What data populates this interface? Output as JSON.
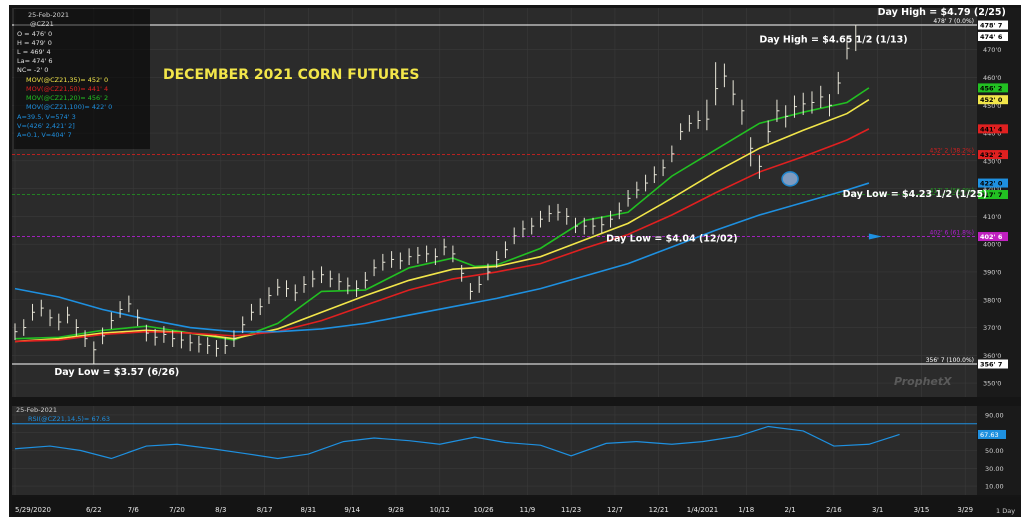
{
  "chart_data": {
    "type": "line",
    "title": "DECEMBER 2021 CORN FUTURES",
    "price_panel": {
      "date_label": "25-Feb-2021",
      "symbol": "@CZ21",
      "ohlc": [
        "O = 476' 0",
        "H = 479' 0",
        "L = 469' 4",
        "La= 474' 6",
        "NC= -2' 0"
      ],
      "moving_averages": [
        {
          "name": "MOV(@CZ21,35)",
          "label": "MOV(@CZ21,35)= 452' 0",
          "color": "#f2e64a",
          "value": 452.0
        },
        {
          "name": "MOV(@CZ21,50)",
          "label": "MOV(@CZ21,50)= 441' 4",
          "color": "#e02020",
          "value": 441.5
        },
        {
          "name": "MOV(@CZ21,20)",
          "label": "MOV(@CZ21,20)= 456' 2",
          "color": "#22c022",
          "value": 456.25
        },
        {
          "name": "MOV(@CZ21,100)",
          "label": "MOV(@CZ21,100)= 422' 0",
          "color": "#1e90e0",
          "value": 422.0
        }
      ],
      "extra_lines": [
        "A=39.5, V=574' 3",
        "V=(426' 2,421' 2]",
        "A=0.1, V=404' 7"
      ],
      "ylim": [
        345,
        485
      ],
      "y_ticks": [
        350,
        360,
        370,
        380,
        390,
        400,
        410,
        420,
        430,
        440,
        450,
        460,
        470
      ],
      "y_tick_labels": [
        "350'0",
        "360'0",
        "370'0",
        "380'0",
        "390'0",
        "400'0",
        "410'0",
        "420'0",
        "430'0",
        "440'0",
        "450'0",
        "460'0",
        "470'0"
      ],
      "price_flags": [
        {
          "label": "478' 7",
          "value": 478.875,
          "bg": "#ffffff",
          "fg": "#000000"
        },
        {
          "label": "474' 6",
          "value": 474.75,
          "bg": "#ffffff",
          "fg": "#000000"
        },
        {
          "label": "456' 2",
          "value": 456.25,
          "bg": "#22c022",
          "fg": "#000000"
        },
        {
          "label": "452' 0",
          "value": 452.0,
          "bg": "#f2e64a",
          "fg": "#000000"
        },
        {
          "label": "441' 4",
          "value": 441.5,
          "bg": "#e02020",
          "fg": "#000000"
        },
        {
          "label": "432' 2",
          "value": 432.25,
          "bg": "#e02020",
          "fg": "#000000"
        },
        {
          "label": "422' 0",
          "value": 422.0,
          "bg": "#1e90e0",
          "fg": "#000000"
        },
        {
          "label": "417' 7",
          "value": 417.875,
          "bg": "#22c022",
          "fg": "#000000"
        },
        {
          "label": "402' 6",
          "value": 402.75,
          "bg": "#c020c0",
          "fg": "#ffffff"
        },
        {
          "label": "356' 7",
          "value": 356.875,
          "bg": "#ffffff",
          "fg": "#000000"
        }
      ],
      "fib_levels": [
        {
          "label": "478' 7 (0.0%)",
          "value": 478.875,
          "color": "#ffffff",
          "dash": false
        },
        {
          "label": "432' 2 (38.2%)",
          "value": 432.25,
          "color": "#d02020",
          "dash": true
        },
        {
          "label": "417' 7 (50.0%)",
          "value": 417.875,
          "color": "#22a022",
          "dash": true
        },
        {
          "label": "402' 6 (61.8%)",
          "value": 402.75,
          "color": "#b020d0",
          "dash": true
        },
        {
          "label": "356' 7 (100.0%)",
          "value": 356.875,
          "color": "#ffffff",
          "dash": false
        }
      ],
      "annotations": [
        {
          "text": "Day High = $4.79 (2/25)",
          "x": 197,
          "y": 482.5
        },
        {
          "text": "Day High = $4.65 1/2 (1/13)",
          "x": 170,
          "y": 472.5
        },
        {
          "text": "Day Low = $4.23 1/2 (1/25)",
          "x": 189,
          "y": 417
        },
        {
          "text": "Day Low = $4.04 (12/02)",
          "x": 135,
          "y": 401
        },
        {
          "text": "Day Low = $3.57 (6/26)",
          "x": 9,
          "y": 353
        }
      ],
      "circle_marker": {
        "x": 177,
        "y": 423.5
      },
      "watermark": "ProphetX"
    },
    "rsi_panel": {
      "date_label": "25-Feb-2021",
      "label": "RSI(@CZ21,14,5)= 67.63",
      "value_flag": "67.63",
      "ylim": [
        0,
        100
      ],
      "y_ticks": [
        10,
        30,
        50,
        70,
        90
      ],
      "y_tick_labels": [
        "10.00",
        "30.00",
        "50.00",
        "70.00",
        "90.00"
      ],
      "overbought": 80,
      "x": [
        0,
        8,
        15,
        22,
        30,
        37,
        45,
        52,
        60,
        67,
        75,
        82,
        90,
        97,
        105,
        112,
        120,
        127,
        135,
        142,
        150,
        157,
        165,
        172,
        180,
        187,
        195,
        202
      ],
      "values": [
        52,
        55,
        50,
        41,
        55,
        57,
        52,
        47,
        41,
        46,
        60,
        64,
        61,
        57,
        65,
        59,
        56,
        44,
        58,
        60,
        57,
        60,
        66,
        77,
        72,
        55,
        57,
        68
      ]
    },
    "x_axis": {
      "labels": [
        "5/29/2020",
        "6/22",
        "7/6",
        "7/20",
        "8/3",
        "8/17",
        "8/31",
        "9/14",
        "9/28",
        "10/12",
        "10/26",
        "11/9",
        "11/23",
        "12/7",
        "12/21",
        "1/4/2021",
        "1/18",
        "2/1",
        "2/16",
        "3/1",
        "3/15",
        "3/29"
      ],
      "positions": [
        0,
        18,
        27,
        37,
        47,
        57,
        67,
        77,
        87,
        97,
        107,
        117,
        127,
        137,
        147,
        157,
        167,
        177,
        187,
        197,
        207,
        217
      ],
      "period": "1 Day"
    },
    "series": [
      {
        "name": "Daily bars",
        "x": [
          0,
          2,
          4,
          6,
          8,
          10,
          12,
          14,
          16,
          18,
          20,
          22,
          24,
          26,
          28,
          30,
          32,
          34,
          36,
          38,
          40,
          42,
          44,
          46,
          48,
          50,
          52,
          54,
          56,
          58,
          60,
          62,
          64,
          66,
          68,
          70,
          72,
          74,
          76,
          78,
          80,
          82,
          84,
          86,
          88,
          90,
          92,
          94,
          96,
          98,
          100,
          102,
          104,
          106,
          108,
          110,
          112,
          114,
          116,
          118,
          120,
          122,
          124,
          126,
          128,
          130,
          132,
          134,
          136,
          138,
          140,
          142,
          144,
          146,
          148,
          150,
          152,
          154,
          156,
          158,
          160,
          162,
          164,
          166,
          168,
          170,
          172,
          174,
          176,
          178,
          180,
          182,
          184,
          186,
          188,
          190,
          192
        ],
        "close": [
          368.5,
          370.0,
          375.5,
          377.0,
          373.5,
          372.0,
          374.5,
          370.0,
          366.0,
          362.0,
          367.0,
          372.5,
          376.5,
          378.5,
          373.5,
          368.0,
          366.5,
          367.5,
          366.0,
          365.5,
          364.5,
          364.0,
          363.5,
          362.5,
          363.5,
          366.0,
          371.0,
          375.5,
          377.5,
          381.5,
          384.5,
          384.0,
          382.5,
          385.5,
          387.5,
          389.0,
          387.5,
          386.5,
          385.0,
          384.0,
          387.0,
          391.5,
          393.5,
          394.5,
          394.0,
          395.5,
          396.0,
          396.5,
          395.5,
          399.0,
          396.5,
          389.5,
          383.0,
          385.5,
          390.0,
          394.5,
          398.0,
          403.0,
          405.5,
          406.5,
          409.0,
          411.0,
          411.5,
          410.0,
          406.5,
          406.5,
          406.5,
          407.0,
          409.0,
          412.0,
          416.5,
          419.5,
          422.0,
          425.0,
          427.5,
          432.5,
          440.5,
          443.5,
          444.5,
          445.0,
          456.0,
          460.5,
          454.0,
          448.0,
          434.5,
          428.0,
          440.5,
          448.0,
          446.0,
          449.5,
          450.5,
          451.0,
          453.0,
          450.0,
          458.0,
          470.5,
          474.75
        ],
        "high": [
          371.5,
          373.0,
          378.5,
          380.0,
          376.5,
          375.0,
          377.5,
          373.0,
          369.0,
          365.0,
          370.0,
          375.5,
          379.5,
          381.5,
          376.5,
          371.0,
          369.5,
          370.5,
          369.0,
          368.5,
          367.5,
          367.0,
          366.5,
          365.5,
          366.5,
          369.0,
          374.0,
          378.5,
          380.5,
          384.5,
          387.5,
          387.0,
          385.5,
          388.5,
          390.5,
          392.0,
          390.5,
          389.5,
          388.0,
          387.0,
          390.0,
          394.5,
          396.5,
          397.5,
          397.0,
          398.5,
          399.0,
          399.5,
          398.5,
          402.0,
          399.5,
          392.5,
          386.0,
          388.5,
          393.0,
          397.5,
          401.0,
          406.0,
          408.5,
          409.5,
          412.0,
          414.0,
          414.5,
          413.0,
          409.5,
          409.5,
          409.5,
          410.0,
          412.0,
          415.0,
          419.5,
          422.5,
          425.0,
          428.0,
          430.5,
          435.5,
          443.5,
          446.5,
          448.0,
          452.0,
          465.5,
          465.0,
          459.0,
          452.0,
          438.5,
          432.0,
          444.5,
          452.0,
          450.0,
          453.5,
          454.5,
          455.0,
          457.0,
          454.0,
          462.0,
          474.5,
          479.0
        ],
        "low": [
          365.5,
          367.0,
          372.5,
          374.0,
          370.5,
          369.0,
          371.5,
          367.0,
          363.0,
          357.0,
          364.0,
          369.5,
          373.5,
          375.5,
          370.5,
          365.0,
          363.5,
          364.5,
          363.0,
          362.5,
          361.5,
          361.0,
          360.5,
          359.5,
          360.5,
          363.0,
          368.0,
          372.5,
          374.5,
          378.5,
          381.5,
          381.0,
          379.5,
          382.5,
          384.5,
          386.0,
          384.5,
          383.5,
          382.0,
          381.0,
          384.0,
          388.5,
          390.5,
          391.5,
          391.0,
          392.5,
          393.0,
          393.5,
          392.5,
          396.0,
          393.5,
          386.5,
          380.0,
          382.5,
          387.0,
          391.5,
          395.0,
          400.0,
          402.5,
          403.5,
          406.0,
          408.0,
          408.5,
          407.0,
          404.0,
          403.5,
          403.5,
          404.0,
          406.0,
          409.0,
          413.5,
          416.5,
          419.0,
          422.0,
          424.5,
          429.5,
          437.5,
          440.5,
          441.5,
          441.0,
          450.0,
          456.5,
          450.0,
          443.0,
          428.0,
          423.5,
          436.5,
          444.0,
          442.0,
          445.5,
          446.5,
          447.0,
          449.0,
          446.0,
          454.0,
          466.5,
          469.5
        ]
      },
      {
        "name": "MOV(@CZ21,20)",
        "color": "#22c022",
        "x": [
          0,
          10,
          20,
          30,
          40,
          50,
          60,
          70,
          80,
          90,
          100,
          105,
          110,
          120,
          130,
          140,
          150,
          160,
          170,
          180,
          190,
          195
        ],
        "values": [
          366.0,
          366.5,
          369.0,
          370.5,
          368.0,
          365.5,
          371.5,
          383.0,
          383.5,
          391.5,
          395.0,
          392.0,
          392.5,
          398.5,
          408.5,
          411.5,
          424.5,
          434.0,
          443.5,
          447.5,
          451.0,
          456.25
        ]
      },
      {
        "name": "MOV(@CZ21,35)",
        "color": "#f2e64a",
        "x": [
          0,
          10,
          20,
          30,
          40,
          50,
          60,
          70,
          80,
          90,
          100,
          110,
          120,
          130,
          140,
          150,
          160,
          170,
          180,
          190,
          195
        ],
        "values": [
          365.0,
          366.0,
          368.0,
          369.0,
          368.0,
          366.0,
          369.5,
          375.5,
          381.5,
          387.0,
          391.0,
          392.0,
          395.5,
          401.5,
          407.5,
          416.5,
          426.0,
          434.5,
          441.0,
          447.0,
          452.0
        ]
      },
      {
        "name": "MOV(@CZ21,50)",
        "color": "#e02020",
        "x": [
          0,
          10,
          20,
          30,
          40,
          50,
          60,
          70,
          80,
          90,
          100,
          110,
          120,
          130,
          140,
          150,
          160,
          170,
          180,
          190,
          195
        ],
        "values": [
          365.0,
          365.5,
          367.5,
          368.5,
          368.0,
          367.0,
          368.5,
          372.5,
          378.0,
          383.5,
          387.5,
          390.0,
          393.0,
          398.5,
          403.5,
          410.5,
          418.5,
          426.0,
          431.5,
          437.5,
          441.5
        ]
      },
      {
        "name": "MOV(@CZ21,100)",
        "color": "#1e90e0",
        "x": [
          0,
          10,
          20,
          30,
          40,
          50,
          60,
          70,
          80,
          90,
          100,
          110,
          120,
          130,
          140,
          150,
          160,
          170,
          180,
          190,
          195
        ],
        "values": [
          384.0,
          381.0,
          376.5,
          373.0,
          370.0,
          368.5,
          368.5,
          369.5,
          371.5,
          374.5,
          377.5,
          380.5,
          384.0,
          388.5,
          393.0,
          399.0,
          405.0,
          410.5,
          415.0,
          419.5,
          422.0
        ]
      }
    ],
    "xlim": [
      0,
      219
    ]
  }
}
